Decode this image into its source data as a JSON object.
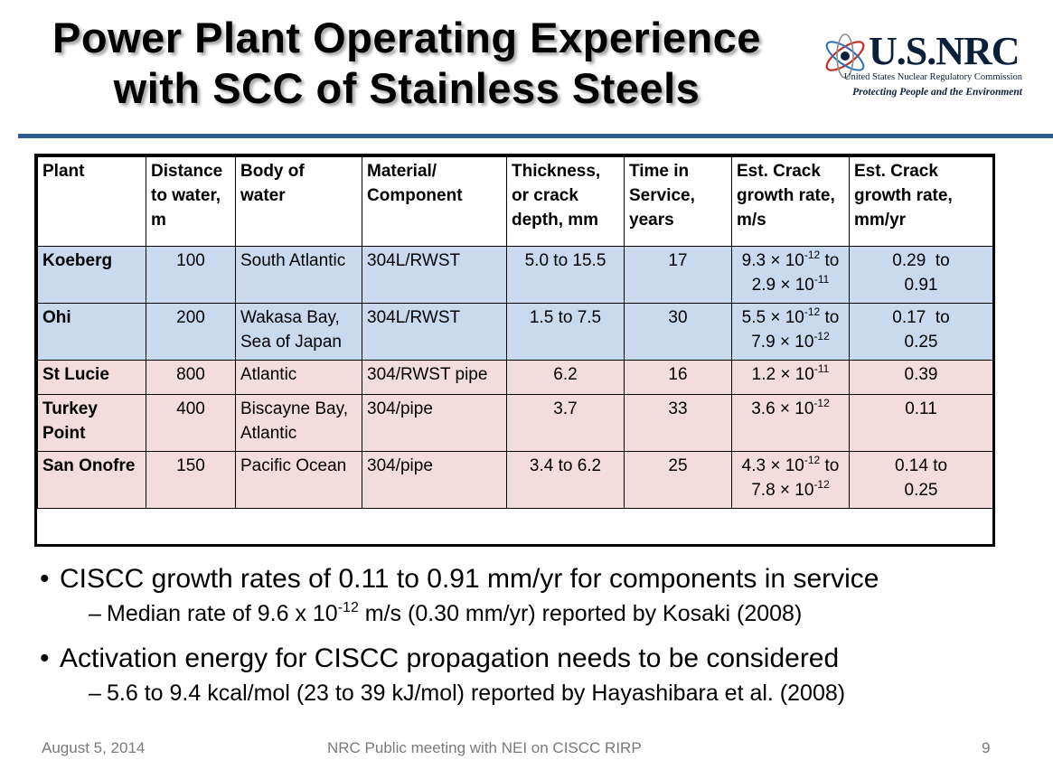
{
  "title": {
    "line1": "Power Plant Operating Experience",
    "line2": "with SCC of Stainless Steels"
  },
  "logo": {
    "mark": "U.S.NRC",
    "org": "United States Nuclear Regulatory Commission",
    "tagline": "Protecting People and the Environment"
  },
  "table": {
    "headers": [
      [
        "Plant"
      ],
      [
        "Distance",
        "to water,",
        "m"
      ],
      [
        "Body of",
        "water"
      ],
      [
        "Material/",
        "Component"
      ],
      [
        "Thickness,",
        "or crack",
        "depth, mm"
      ],
      [
        "Time in",
        "Service,",
        "years"
      ],
      [
        "Est. Crack",
        "growth rate,",
        "m/s"
      ],
      [
        "Est. Crack",
        "growth rate,",
        "mm/yr"
      ]
    ],
    "rows": [
      {
        "plant": "Koeberg",
        "distance": "100",
        "water": [
          "South Atlantic"
        ],
        "material": "304L/RWST",
        "thickness": "5.0 to 15.5",
        "time": "17",
        "rate_a_mant": "9.3 × 10",
        "rate_a_exp": "-12",
        "rate_a_sep": " to",
        "rate_b_mant": "2.9 × 10",
        "rate_b_exp": "-11",
        "mm": [
          "0.29  to",
          "0.91"
        ]
      },
      {
        "plant": "Ohi",
        "distance": "200",
        "water": [
          "Wakasa Bay,",
          "Sea of Japan"
        ],
        "material": "304L/RWST",
        "thickness": "1.5 to 7.5",
        "time": "30",
        "rate_a_mant": "5.5 × 10",
        "rate_a_exp": "-12",
        "rate_a_sep": " to",
        "rate_b_mant": "7.9 × 10",
        "rate_b_exp": "-12",
        "mm": [
          "0.17  to",
          "0.25"
        ]
      },
      {
        "plant": "St Lucie",
        "distance": "800",
        "water": [
          "Atlantic"
        ],
        "material": "304/RWST pipe",
        "thickness": "6.2",
        "time": "16",
        "rate_a_mant": "1.2 × 10",
        "rate_a_exp": "-11",
        "mm": [
          "0.39"
        ]
      },
      {
        "plant": "Turkey\nPoint",
        "distance": "400",
        "water": [
          "Biscayne Bay,",
          "Atlantic"
        ],
        "material": "304/pipe",
        "thickness": "3.7",
        "time": "33",
        "rate_a_mant": "3.6 × 10",
        "rate_a_exp": "-12",
        "mm": [
          "0.11"
        ]
      },
      {
        "plant": "San Onofre",
        "distance": "150",
        "water": [
          "Pacific Ocean"
        ],
        "material": "304/pipe",
        "thickness": "3.4 to 6.2",
        "time": "25",
        "rate_a_mant": "4.3 × 10",
        "rate_a_exp": "-12",
        "rate_a_sep": " to",
        "rate_b_mant": "7.8 × 10",
        "rate_b_exp": "-12",
        "mm": [
          "0.14 to",
          "0.25"
        ]
      }
    ]
  },
  "bullets": [
    {
      "text": "CISCC growth rates of 0.11 to 0.91 mm/yr for components in service",
      "sub_pre": "Median rate of 9.6 x 10",
      "sub_sup": "-12",
      "sub_post": " m/s (0.30 mm/yr) reported by Kosaki (2008)"
    },
    {
      "text": "Activation energy for CISCC propagation needs to be considered",
      "sub_pre": "5.6 to 9.4 kcal/mol (23 to 39 kJ/mol) reported by Hayashibara et al. (2008)"
    }
  ],
  "footer": {
    "date": "August 5, 2014",
    "meeting": "NRC Public meeting with NEI on CISCC RIRP",
    "page": "9"
  },
  "colors": {
    "rule": "#2e5a8f",
    "row_blue": "#c9d9ee",
    "row_pink": "#f3dcdc",
    "logo_navy": "#0b1f3a"
  }
}
